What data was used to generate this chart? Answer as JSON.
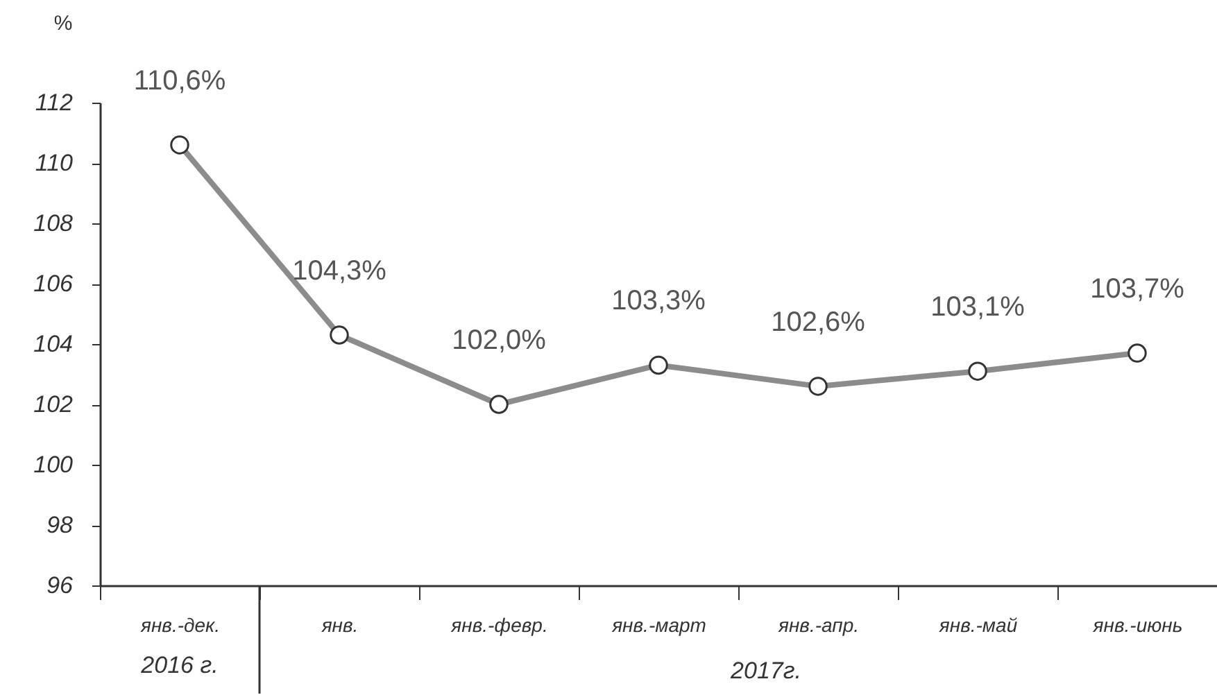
{
  "chart_data": {
    "type": "line",
    "ylabel": "%",
    "categories": [
      "янв.-дек.",
      "янв.",
      "янв.-февр.",
      "янв.-март",
      "янв.-апр.",
      "янв.-май",
      "янв.-июнь"
    ],
    "series": [
      {
        "color": "#8c8c8c",
        "values": [
          110.6,
          104.3,
          102.0,
          103.3,
          102.6,
          103.1,
          103.7
        ],
        "value_labels": [
          "110,6%",
          "104,3%",
          "102,0%",
          "103,3%",
          "102,6%",
          "103,1%",
          "103,7%"
        ]
      }
    ],
    "ylim": [
      96,
      112
    ],
    "yticks": [
      96,
      98,
      100,
      102,
      104,
      106,
      108,
      110,
      112
    ],
    "grid": false,
    "legend": false,
    "marker": "circle",
    "line_style": "solid",
    "annotations": [
      "2016 г.",
      "2017г."
    ]
  }
}
